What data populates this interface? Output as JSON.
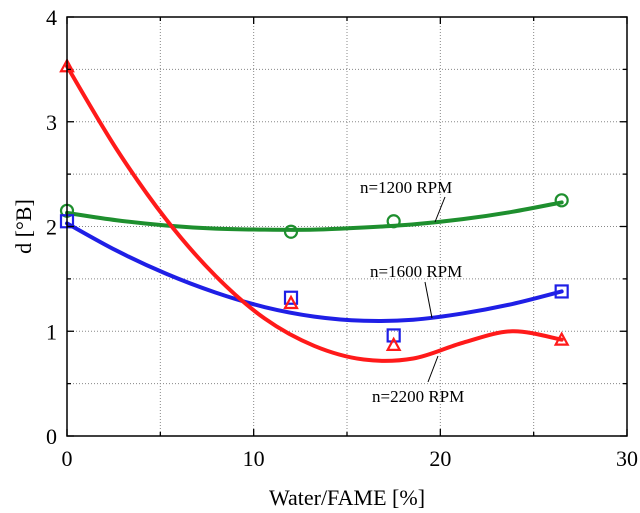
{
  "chart_data": {
    "type": "line",
    "title": "",
    "xlabel": "Water/FAME [%]",
    "ylabel": "d [°B]",
    "xlim": [
      0,
      30
    ],
    "ylim": [
      0,
      4
    ],
    "x_ticks": [
      0,
      10,
      20,
      30
    ],
    "y_ticks": [
      0,
      1,
      2,
      3,
      4
    ],
    "grid": true,
    "legend": "none",
    "series": [
      {
        "name": "n=1200 RPM",
        "marker": "circle",
        "color": "#1e8f2e",
        "x": [
          0,
          12,
          17.5,
          26.5
        ],
        "y": [
          2.15,
          1.95,
          2.05,
          2.25
        ],
        "fit_y": [
          2.13,
          2.06,
          2.01,
          1.98,
          1.97,
          1.97,
          1.99,
          2.02,
          2.07,
          2.14,
          2.23
        ]
      },
      {
        "name": "n=1600 RPM",
        "marker": "square",
        "color": "#1f1fe6",
        "x": [
          0,
          12,
          17.5,
          26.5
        ],
        "y": [
          2.05,
          1.32,
          0.96,
          1.38
        ],
        "fit_y": [
          2.03,
          1.77,
          1.55,
          1.37,
          1.23,
          1.14,
          1.1,
          1.11,
          1.17,
          1.26,
          1.38
        ]
      },
      {
        "name": "n=2200 RPM",
        "marker": "triangle",
        "color": "#ff1a1a",
        "x": [
          0,
          12,
          17.5,
          26.5
        ],
        "y": [
          3.53,
          1.27,
          0.87,
          0.92
        ],
        "fit_y": [
          3.53,
          2.74,
          2.07,
          1.53,
          1.12,
          0.86,
          0.73,
          0.74,
          0.89,
          1.0,
          0.92
        ],
        "fit_x": [
          0,
          2.65,
          5.3,
          7.95,
          10.6,
          13.25,
          15.9,
          18.55,
          21.2,
          23.85,
          26.5
        ]
      }
    ],
    "annotations": [
      {
        "text": "n=1200 RPM",
        "series": 0
      },
      {
        "text": "n=1600 RPM",
        "series": 1
      },
      {
        "text": "n=2200 RPM",
        "series": 2
      }
    ]
  }
}
